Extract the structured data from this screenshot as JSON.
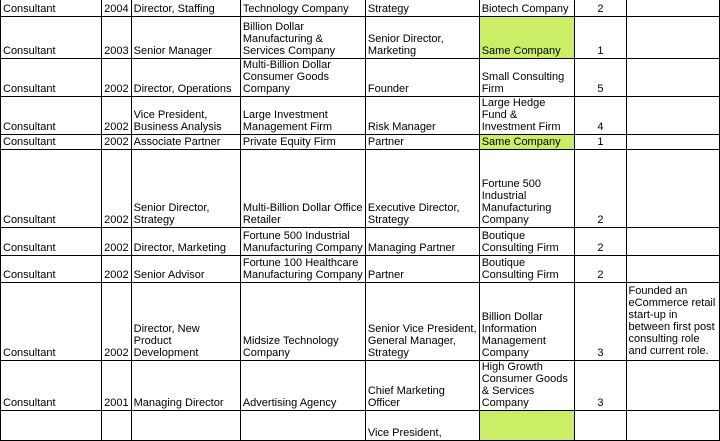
{
  "highlight_color": "#ccee66",
  "rows": [
    {
      "role": "Consultant",
      "year": "2004",
      "title": "Director, Staffing",
      "prior_employer": "Technology Company",
      "current_title": "Strategy",
      "current_employer": "Biotech Company",
      "roles": "2",
      "notes": "",
      "highlight": false
    },
    {
      "role": "Consultant",
      "year": "2003",
      "title": "Senior Manager",
      "prior_employer": "Billion Dollar Manufacturing & Services Company",
      "current_title": "Senior Director, Marketing",
      "current_employer": "Same Company",
      "roles": "1",
      "notes": "",
      "highlight": true
    },
    {
      "role": "Consultant",
      "year": "2002",
      "title": "Director, Operations",
      "prior_employer": "Multi-Billion Dollar Consumer Goods Company",
      "current_title": "Founder",
      "current_employer": "Small Consulting Firm",
      "roles": "5",
      "notes": "",
      "highlight": false
    },
    {
      "role": "Consultant",
      "year": "2002",
      "title": "Vice President, Business Analysis",
      "prior_employer": "Large Investment Management Firm",
      "current_title": "Risk Manager",
      "current_employer": "Large Hedge Fund & Investment Firm",
      "roles": "4",
      "notes": "",
      "highlight": false
    },
    {
      "role": "Consultant",
      "year": "2002",
      "title": "Associate Partner",
      "prior_employer": "Private Equity Firm",
      "current_title": "Partner",
      "current_employer": "Same Company",
      "roles": "1",
      "notes": "",
      "highlight": true
    },
    {
      "role": "Consultant",
      "year": "2002",
      "title": "Senior Director, Strategy",
      "prior_employer": "Multi-Billion Dollar Office Retailer",
      "current_title": "Executive Director, Strategy",
      "current_employer": "Fortune 500 Industrial Manufacturing Company",
      "roles": "2",
      "notes": "",
      "highlight": false
    },
    {
      "role": "Consultant",
      "year": "2002",
      "title": "Director, Marketing",
      "prior_employer": "Fortune 500 Industrial Manufacturing Company",
      "current_title": "Managing Partner",
      "current_employer": "Boutique Consulting Firm",
      "roles": "2",
      "notes": "",
      "highlight": false
    },
    {
      "role": "Consultant",
      "year": "2002",
      "title": "Senior Advisor",
      "prior_employer": "Fortune 100 Healthcare Manufacturing Company",
      "current_title": "Partner",
      "current_employer": "Boutique Consulting Firm",
      "roles": "2",
      "notes": "",
      "highlight": false
    },
    {
      "role": "Consultant",
      "year": "2002",
      "title": "Director, New Product Development",
      "prior_employer": "Midsize Technology Company",
      "current_title": "Senior Vice President, General Manager, Strategy",
      "current_employer": "Billion Dollar Information Management Company",
      "roles": "3",
      "notes": "Founded an eCommerce retail start-up in between first post consulting role and current role.",
      "highlight": false
    },
    {
      "role": "Consultant",
      "year": "2001",
      "title": "Managing Director",
      "prior_employer": "Advertising Agency",
      "current_title": "Chief Marketing Officer",
      "current_employer": "High Growth Consumer Goods & Services Company",
      "roles": "3",
      "notes": "",
      "highlight": false
    },
    {
      "role": "",
      "year": "",
      "title": "",
      "prior_employer": "",
      "current_title": "Vice President,",
      "current_employer": "",
      "roles": "",
      "notes": "",
      "highlight": true
    }
  ]
}
